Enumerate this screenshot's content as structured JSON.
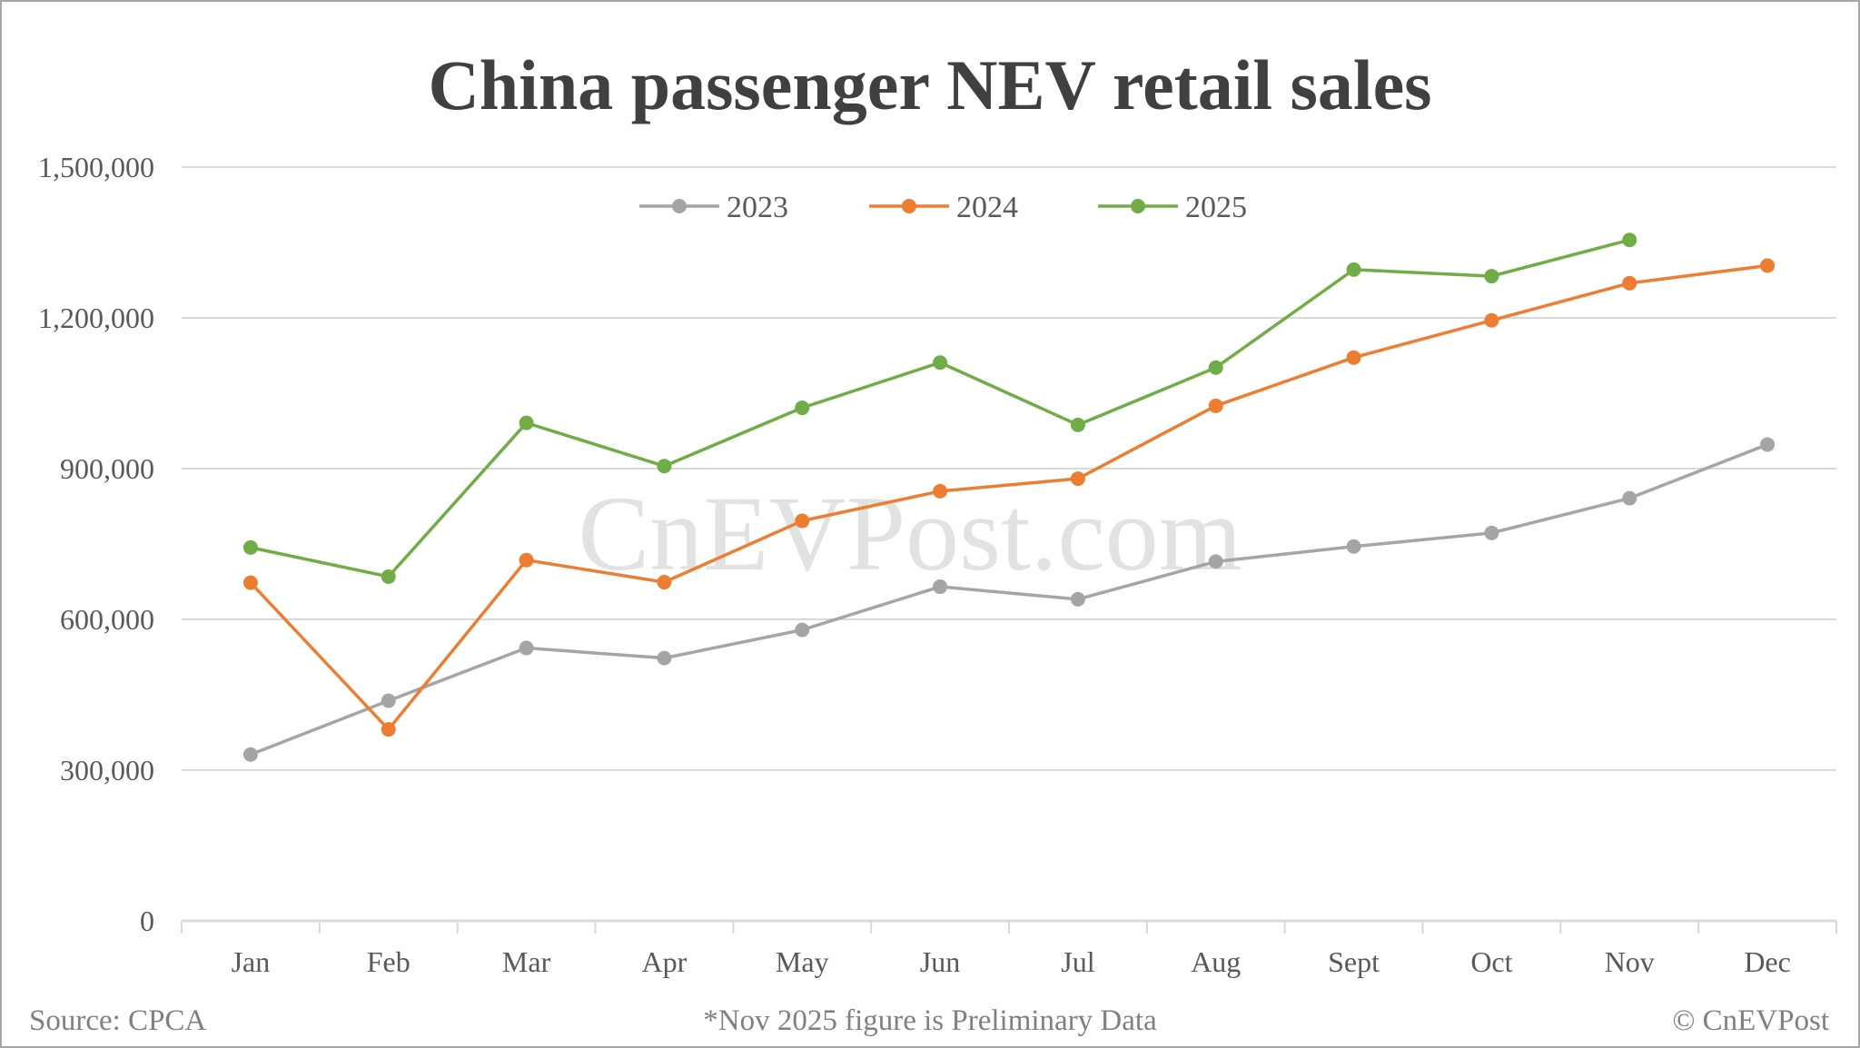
{
  "chart_data": {
    "type": "line",
    "title": "China passenger NEV retail sales",
    "xlabel": "",
    "ylabel": "",
    "categories": [
      "Jan",
      "Feb",
      "Mar",
      "Apr",
      "May",
      "Jun",
      "Jul",
      "Aug",
      "Sept",
      "Oct",
      "Nov",
      "Dec"
    ],
    "ylim": [
      0,
      1500000
    ],
    "yticks": [
      0,
      300000,
      600000,
      900000,
      1200000,
      1500000
    ],
    "ytick_labels": [
      "0",
      "300,000",
      "600,000",
      "900,000",
      "1,200,000",
      "1,500,000"
    ],
    "grid": true,
    "legend_position": "top",
    "series": [
      {
        "name": "2023",
        "color": "#a5a5a5",
        "values": [
          331000,
          438000,
          543000,
          523000,
          579000,
          665000,
          640000,
          715000,
          745000,
          772000,
          841000,
          948000
        ]
      },
      {
        "name": "2024",
        "color": "#ed7d31",
        "values": [
          673000,
          381000,
          718000,
          674000,
          796000,
          855000,
          880000,
          1025000,
          1121000,
          1195000,
          1269000,
          1304000
        ]
      },
      {
        "name": "2025",
        "color": "#70ad47",
        "values": [
          743000,
          685000,
          991000,
          905000,
          1021000,
          1111000,
          987000,
          1101000,
          1296000,
          1283000,
          1355000,
          null
        ]
      }
    ],
    "annotations": [
      "*Nov 2025 figure is Preliminary Data"
    ]
  },
  "footer": {
    "source": "Source: CPCA",
    "note": "*Nov 2025 figure is Preliminary Data",
    "copyright": "© CnEVPost"
  },
  "watermark": "CnEVPost.com",
  "colors": {
    "gridline": "#d9d9d9",
    "axis": "#d9d9d9",
    "title": "#404040",
    "tick_text": "#595959",
    "footer_text": "#808080"
  }
}
